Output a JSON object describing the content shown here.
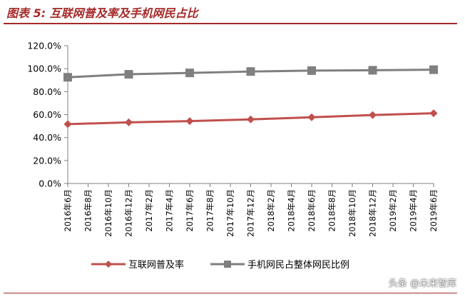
{
  "figure_title": "图表 5:  互联网普及率及手机网民占比",
  "watermark": "头条 @未来智库",
  "colors": {
    "title": "#a52a2a",
    "series_1": "#c0504d",
    "series_2": "#7f7f7f",
    "axis": "#7f7f7f"
  },
  "chart_data": {
    "type": "line",
    "title": "",
    "xlabel": "",
    "ylabel": "",
    "x": [
      "2016年6月",
      "2016年8月",
      "2016年10月",
      "2016年12月",
      "2017年2月",
      "2017年4月",
      "2017年6月",
      "2017年8月",
      "2017年10月",
      "2017年12月",
      "2018年2月",
      "2018年4月",
      "2018年6月",
      "2018年8月",
      "2018年10月",
      "2018年12月",
      "2019年2月",
      "2019年4月",
      "2019年6月"
    ],
    "yticks": [
      "0.0%",
      "20.0%",
      "40.0%",
      "60.0%",
      "80.0%",
      "100.0%",
      "120.0%"
    ],
    "ylim": [
      0,
      120
    ],
    "grid": false,
    "legend_position": "bottom",
    "series": [
      {
        "name": "互联网普及率",
        "marker": "diamond",
        "color": "#c0504d",
        "points": [
          {
            "x": "2016年6月",
            "y": 51.7
          },
          {
            "x": "2016年12月",
            "y": 53.2
          },
          {
            "x": "2017年6月",
            "y": 54.3
          },
          {
            "x": "2017年12月",
            "y": 55.8
          },
          {
            "x": "2018年6月",
            "y": 57.7
          },
          {
            "x": "2018年12月",
            "y": 59.6
          },
          {
            "x": "2019年6月",
            "y": 61.2
          }
        ]
      },
      {
        "name": "手机网民占整体网民比例",
        "marker": "square",
        "color": "#7f7f7f",
        "points": [
          {
            "x": "2016年6月",
            "y": 92.5
          },
          {
            "x": "2016年12月",
            "y": 95.1
          },
          {
            "x": "2017年6月",
            "y": 96.3
          },
          {
            "x": "2017年12月",
            "y": 97.5
          },
          {
            "x": "2018年6月",
            "y": 98.3
          },
          {
            "x": "2018年12月",
            "y": 98.6
          },
          {
            "x": "2019年6月",
            "y": 99.1
          }
        ]
      }
    ]
  }
}
